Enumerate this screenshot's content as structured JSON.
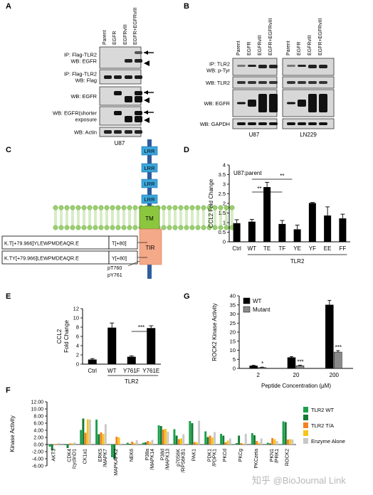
{
  "panel_labels": {
    "A": "A",
    "B": "B",
    "C": "C",
    "D": "D",
    "E": "E",
    "F": "F",
    "G": "G"
  },
  "panel_a": {
    "lanes": [
      "Parent",
      "EGFR",
      "EGFRvIII",
      "EGFR+EGFRvIII"
    ],
    "rows": [
      {
        "label": [
          "IP: Flag-TLR2",
          "WB: EGFR"
        ],
        "arrows": [
          "arrow",
          "arrowhead"
        ]
      },
      {
        "label": [
          "IP: Flag-TLR2",
          "WB: Flag"
        ],
        "arrows": []
      },
      {
        "label": [
          "WB: EGFR"
        ],
        "arrows": [
          "arrow",
          "arrowhead"
        ]
      },
      {
        "label": [
          "WB: EGFR(shorter",
          "exposure"
        ],
        "arrows": [
          "arrow",
          "arrowhead"
        ]
      },
      {
        "label": [
          "WB: Actin"
        ],
        "arrows": []
      }
    ],
    "cell_line": "U87"
  },
  "panel_b": {
    "lanes": [
      "Parent",
      "EGFR",
      "EGFRvIII",
      "EGFR+EGFRvIII"
    ],
    "rows": [
      {
        "label": [
          "IP: TLR2",
          "WB: p-Tyr"
        ]
      },
      {
        "label": [
          "WB: TLR2"
        ]
      },
      {
        "label": [
          "WB: EGFR"
        ]
      },
      {
        "label": [
          "WB: GAPDH"
        ]
      }
    ],
    "cell_lines": [
      "U87",
      "LN229"
    ]
  },
  "panel_c": {
    "domains": [
      "LRR",
      "LRR",
      "LRR",
      "LRR",
      "TM",
      "TIR"
    ],
    "peptides": [
      {
        "seq": "K.T[+79.966]YLEWPMDEAQR.E",
        "mod": "T[+80]"
      },
      {
        "seq": "K.TY[+79.966]LEWPMDEAQR.E",
        "mod": "Y[+80]"
      }
    ],
    "sites": [
      "pT760",
      "pY761"
    ]
  },
  "chart_data": [
    {
      "panel": "D",
      "type": "bar",
      "ylabel": "CCL2 Fold Change",
      "annotation": "U87:parent",
      "xlabel": "TLR2",
      "categories": [
        "Ctrl",
        "WT",
        "TE",
        "TF",
        "YE",
        "YF",
        "EE",
        "FF"
      ],
      "values": [
        0.97,
        1.05,
        2.85,
        0.93,
        0.65,
        2.02,
        1.37,
        1.22
      ],
      "errors": [
        0.18,
        0.12,
        0.25,
        0.18,
        0.22,
        0.03,
        0.45,
        0.22
      ],
      "ylim": [
        0,
        4
      ],
      "yticks": [
        "0",
        "0.5",
        "1",
        "1.5",
        "2",
        "2.5",
        "3",
        "3.5",
        "4"
      ],
      "significance": [
        {
          "label": "**",
          "from": "WT",
          "to": "TE"
        },
        {
          "label": "**",
          "from": "WT",
          "to": "TF"
        }
      ]
    },
    {
      "panel": "E",
      "type": "bar",
      "ylabel": [
        "CCL2",
        "Fold Change"
      ],
      "xlabel": "TLR2",
      "categories": [
        "Ctrl",
        "WT",
        "Y761F",
        "Y761E"
      ],
      "values": [
        1.0,
        7.9,
        1.6,
        7.8
      ],
      "errors": [
        0.2,
        1.0,
        0.2,
        0.5
      ],
      "ylim": [
        0,
        12
      ],
      "yticks": [
        "0",
        "2",
        "4",
        "6",
        "8",
        "10",
        "12"
      ],
      "significance": [
        {
          "label": "***",
          "from": "Y761F",
          "to": "Y761E"
        }
      ]
    },
    {
      "panel": "G",
      "type": "bar",
      "ylabel": "ROCK2 Kinase Activity",
      "xlabel": "Peptide Concentration (μM)",
      "categories": [
        "2",
        "20",
        "200"
      ],
      "series": [
        {
          "name": "WT",
          "values": [
            1.4,
            6.0,
            35.0
          ],
          "errors": [
            0.3,
            0.5,
            2.5
          ],
          "color": "#000000"
        },
        {
          "name": "Mutant",
          "values": [
            0.5,
            1.5,
            9.0
          ],
          "errors": [
            0.2,
            0.3,
            0.8
          ],
          "color": "#8a8a8a"
        }
      ],
      "ylim": [
        0,
        40
      ],
      "yticks": [
        "0",
        "5",
        "10",
        "15",
        "20",
        "25",
        "30",
        "35",
        "40"
      ],
      "significance": [
        "*",
        "***",
        "***"
      ],
      "legend": "top-left"
    },
    {
      "panel": "F",
      "type": "bar",
      "ylabel": "Kinase Activity",
      "categories": [
        "AKT3",
        "CDK4\n/cyclinD1",
        "CK1a1",
        "ERK5\n/MAPK7",
        "MAPKAPK2",
        "NEK6",
        "P38a\n/MAPK14",
        "P38d\n/MAPK13",
        "p70S6K\n/RPS6KB1",
        "PAK1",
        "PDK1\n/PDPK1",
        "PKCd",
        "PKCg",
        "PKCzeta",
        "PKN1\n/PRK1",
        "ROCK2"
      ],
      "series": [
        {
          "name": "TLR2 WT",
          "color": "#1aa04a",
          "values": [
            -0.6,
            -0.2,
            4.1,
            7.0,
            -3.6,
            0.5,
            0.5,
            5.4,
            4.3,
            6.6,
            3.7,
            3.0,
            0.4,
            3.2,
            0.5,
            6.5
          ]
        },
        {
          "name": "",
          "color": "#127a33",
          "values": [
            -1.6,
            -1.0,
            7.3,
            2.9,
            -4.1,
            0.2,
            0.6,
            5.2,
            2.5,
            6.0,
            2.1,
            2.5,
            2.5,
            2.6,
            0.3,
            6.3
          ]
        },
        {
          "name": "TLR2 T/A",
          "color": "#f58220",
          "values": [
            0.1,
            0.3,
            3.3,
            3.4,
            2.2,
            0.8,
            1.0,
            4.2,
            1.5,
            0.7,
            2.5,
            0.6,
            0.4,
            1.0,
            1.8,
            1.4
          ]
        },
        {
          "name": "",
          "color": "#f5c518",
          "values": [
            0.2,
            0.3,
            7.1,
            3.0,
            2.0,
            0.4,
            0.7,
            4.4,
            1.7,
            0.6,
            2.0,
            1.1,
            0.2,
            0.5,
            1.5,
            1.5
          ]
        },
        {
          "name": "Enzyme Alone",
          "color": "#c8c8c8",
          "values": [
            0.4,
            0.6,
            7.0,
            5.7,
            -0.3,
            1.2,
            1.3,
            3.6,
            2.9,
            6.7,
            3.5,
            1.7,
            3.0,
            1.7,
            1.0,
            1.4
          ]
        }
      ],
      "ylim": [
        -6,
        12
      ],
      "yticks": [
        "-6.00",
        "-4.00",
        "-2.00",
        "0.00",
        "2.00",
        "4.00",
        "6.00",
        "8.00",
        "10.00",
        "12.00"
      ],
      "legend": "right"
    }
  ],
  "watermark": "知乎 @BioJournal Link"
}
